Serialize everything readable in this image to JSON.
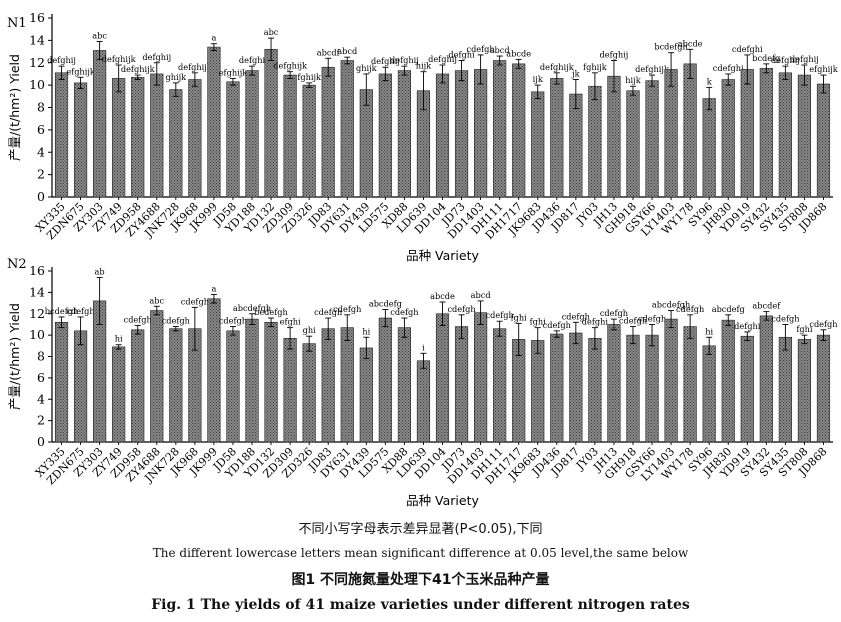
{
  "chart_data": [
    {
      "type": "bar",
      "panel_label": "N1",
      "ylabel": "产量/(t/hm²) Yield",
      "xlabel": "品种 Variety",
      "ylim": [
        0,
        16
      ],
      "yticks": [
        0,
        2,
        4,
        6,
        8,
        10,
        12,
        14,
        16
      ],
      "categories": [
        "XY335",
        "ZDN675",
        "ZY303",
        "ZY749",
        "ZD958",
        "ZY4688",
        "JNK728",
        "JK968",
        "JK999",
        "JD58",
        "YD188",
        "YD132",
        "ZD309",
        "ZD326",
        "JD83",
        "DY631",
        "DY439",
        "LD575",
        "XD88",
        "LD639",
        "DD104",
        "JD73",
        "DD1403",
        "DH111",
        "DH1717",
        "JK9683",
        "JD436",
        "JD817",
        "JY03",
        "JH13",
        "GH918",
        "GSY66",
        "LY1403",
        "WY178",
        "SY96",
        "JH830",
        "YD919",
        "SY432",
        "SY435",
        "ST808",
        "JD868"
      ],
      "values": [
        11.1,
        10.2,
        13.1,
        10.6,
        10.7,
        11.0,
        9.6,
        10.5,
        13.4,
        10.3,
        11.3,
        13.2,
        10.9,
        10.0,
        11.6,
        12.2,
        9.6,
        11.0,
        11.3,
        9.5,
        11.0,
        11.3,
        11.4,
        12.2,
        11.9,
        9.4,
        10.6,
        9.2,
        9.9,
        10.8,
        9.5,
        10.4,
        11.4,
        11.9,
        8.8,
        10.5,
        11.4,
        11.5,
        11.1,
        10.9,
        10.1
      ],
      "errors": [
        0.6,
        0.5,
        0.8,
        1.2,
        0.2,
        1.0,
        0.6,
        0.6,
        0.3,
        0.3,
        0.4,
        1.0,
        0.3,
        0.2,
        0.8,
        0.3,
        1.4,
        0.6,
        0.4,
        1.7,
        0.8,
        0.9,
        1.3,
        0.4,
        0.4,
        0.6,
        0.5,
        1.3,
        1.2,
        1.4,
        0.4,
        0.5,
        1.5,
        1.3,
        1.0,
        0.5,
        1.3,
        0.4,
        0.6,
        0.9,
        0.8
      ],
      "letters": [
        "defghij",
        "efghijk",
        "abc",
        "defghijk",
        "defghijk",
        "defghij",
        "ghijk",
        "defghijk",
        "a",
        "efghijk",
        "defghi",
        "abc",
        "defghijk",
        "fghijk",
        "abcdf",
        "abcd",
        "ghijk",
        "defghij",
        "defghij",
        "hijk",
        "defghij",
        "defghi",
        "cdefgh",
        "abcd",
        "abcde",
        "ijk",
        "defghijk",
        "jk",
        "fghijk",
        "defghij",
        "hijk",
        "defghijk",
        "bcdefgh",
        "abcde",
        "k",
        "cdefghi",
        "cdefghi",
        "bcdefg",
        "defghij",
        "defghij",
        "efghijk"
      ]
    },
    {
      "type": "bar",
      "panel_label": "N2",
      "ylabel": "产量/(t/hm²) Yield",
      "xlabel": "品种 Variety",
      "ylim": [
        0,
        16
      ],
      "yticks": [
        0,
        2,
        4,
        6,
        8,
        10,
        12,
        14,
        16
      ],
      "categories": [
        "XY335",
        "ZDN675",
        "ZY303",
        "ZY749",
        "ZD958",
        "ZY4688",
        "JNK728",
        "JK968",
        "JK999",
        "JD58",
        "YD188",
        "YD132",
        "ZD309",
        "ZD326",
        "JD83",
        "DY631",
        "DY439",
        "LD575",
        "XD88",
        "LD639",
        "DD104",
        "JD73",
        "DD1403",
        "DH111",
        "DH1717",
        "JK9683",
        "JD436",
        "JD817",
        "JY03",
        "JH13",
        "GH918",
        "GSY66",
        "LY1403",
        "WY178",
        "SY96",
        "JH830",
        "YD919",
        "SY432",
        "SY435",
        "ST808",
        "JD868"
      ],
      "values": [
        11.2,
        10.4,
        13.2,
        8.9,
        10.5,
        12.3,
        10.6,
        10.6,
        13.4,
        10.4,
        11.5,
        11.2,
        9.7,
        9.2,
        10.6,
        10.7,
        8.8,
        11.6,
        10.7,
        7.6,
        12.0,
        10.8,
        12.1,
        10.6,
        9.6,
        9.5,
        10.1,
        10.2,
        9.7,
        11.0,
        10.0,
        10.0,
        11.5,
        10.8,
        9.0,
        11.4,
        9.9,
        11.8,
        9.8,
        9.6,
        10.0
      ],
      "errors": [
        0.5,
        1.3,
        2.2,
        0.2,
        0.4,
        0.4,
        0.2,
        2.0,
        0.4,
        0.4,
        0.5,
        0.4,
        1.0,
        0.7,
        1.0,
        1.2,
        1.0,
        0.8,
        0.9,
        0.7,
        1.1,
        1.1,
        1.1,
        0.7,
        1.5,
        1.2,
        0.3,
        1.0,
        1.0,
        0.5,
        0.8,
        1.0,
        0.8,
        1.1,
        0.8,
        0.5,
        0.4,
        0.4,
        1.2,
        0.4,
        0.5
      ],
      "letters": [
        "bcdefgh",
        "cdefgh",
        "ab",
        "hi",
        "cdefgh",
        "abc",
        "cdefgh",
        "cdefgh",
        "a",
        "cdefgh",
        "abcdefgh",
        "bcdefgh",
        "efghi",
        "ghi",
        "cdefgh",
        "cdefgh",
        "hi",
        "abcdefg",
        "cdefgh",
        "i",
        "abcde",
        "cdefgh",
        "abcd",
        "cdefgh",
        "fghi",
        "fghi",
        "cdefgh",
        "cdefgh",
        "defghi",
        "cdefgh",
        "cdefgh",
        "cdefgh",
        "abcdefgh",
        "cdefgh",
        "hi",
        "abcdefg",
        "defghi",
        "abcdef",
        "cdefgh",
        "fghi",
        "cdefgh"
      ]
    }
  ],
  "captions": {
    "note_cn": "不同小写字母表示差异显著(P<0.05),下同",
    "note_en": "The different lowercase letters mean significant difference at 0.05 level,the same below",
    "figure_cn": "图1   不同施氮量处理下41个玉米品种产量",
    "figure_en": "Fig. 1   The yields of 41 maize varieties under different nitrogen rates"
  }
}
